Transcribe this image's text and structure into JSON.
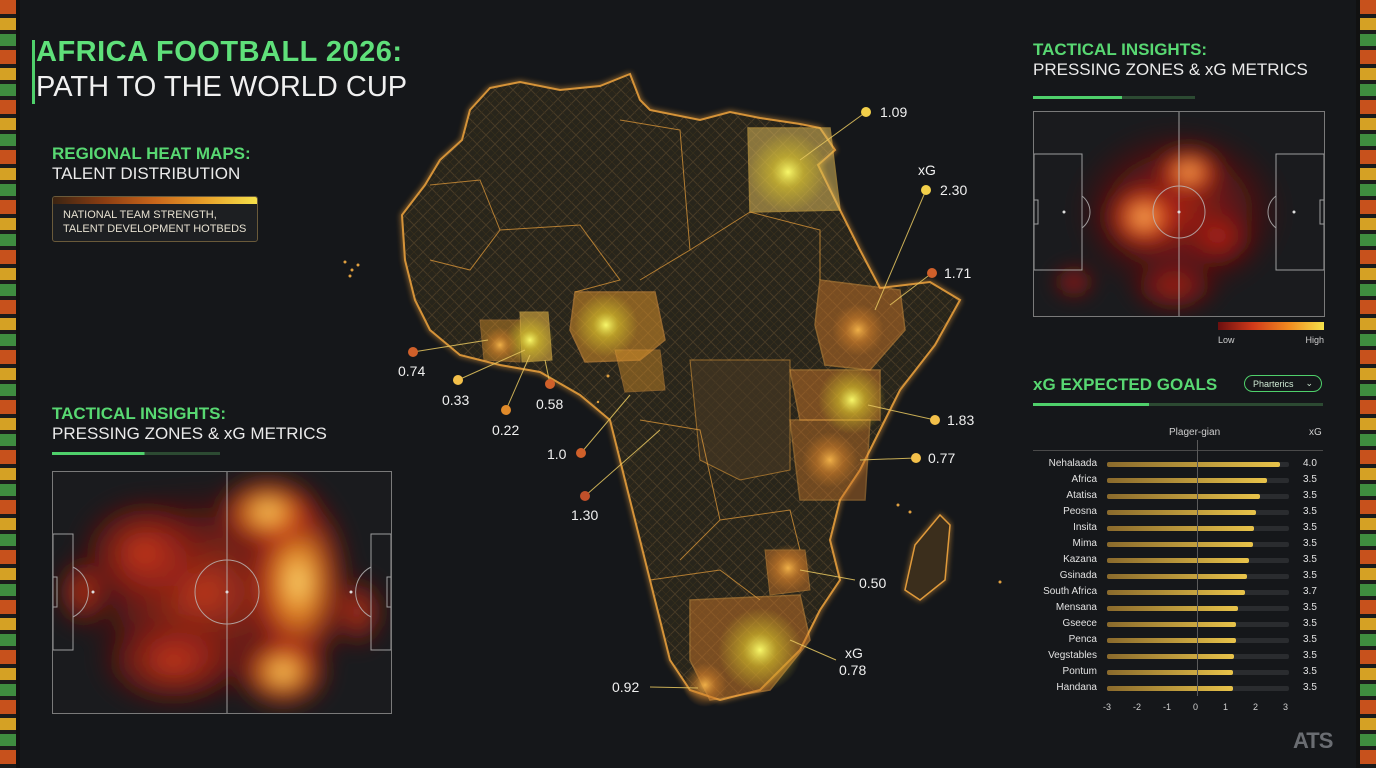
{
  "header": {
    "title_line1": "AFRICA FOOTBALL 2026:",
    "title_line2": "PATH TO THE WORLD CUP"
  },
  "regional": {
    "title": "REGIONAL HEAT MAPS:",
    "subtitle": "TALENT DISTRIBUTION",
    "legend_line1": "NATIONAL TEAM STRENGTH,",
    "legend_line2": "TALENT DEVELOPMENT HOTBEDS"
  },
  "tactical_left": {
    "title": "TACTICAL INSIGHTS:",
    "subtitle": "PRESSING ZONES & xG METRICS"
  },
  "tactical_right": {
    "title": "TACTICAL INSIGHTS:",
    "subtitle": "PRESSING ZONES & xG METRICS",
    "legend_low": "Low",
    "legend_high": "High"
  },
  "map_labels": [
    {
      "text": "1.09",
      "color": "#f3d04a"
    },
    {
      "text": "xG",
      "color": "#f3d04a"
    },
    {
      "text": "2.30",
      "color": "#f3d04a"
    },
    {
      "text": "1.71",
      "color": "#d0602a"
    },
    {
      "text": "1.83",
      "color": "#f3c04a"
    },
    {
      "text": "0.77",
      "color": "#f3c04a"
    },
    {
      "text": "0.74",
      "color": "#d0602a"
    },
    {
      "text": "0.33",
      "color": "#f3c04a"
    },
    {
      "text": "0.58",
      "color": "#d0602a"
    },
    {
      "text": "0.22",
      "color": "#e08a2a"
    },
    {
      "text": "1.0",
      "color": "#d0602a"
    },
    {
      "text": "1.30",
      "color": "#c0502a"
    },
    {
      "text": "0.50",
      "color": "#e08a2a"
    },
    {
      "text": "xG",
      "color": "#f3c04a"
    },
    {
      "text": "0.78",
      "color": "#f3c04a"
    },
    {
      "text": "0.92",
      "color": "#f3c04a"
    }
  ],
  "xg_panel": {
    "title": "xG EXPECTED GOALS",
    "dropdown": "Pharterics",
    "col_player": "Plager-gian",
    "col_xg": "xG",
    "axis_ticks": [
      "-3",
      "-2",
      "-1",
      "0",
      "1",
      "2",
      "3"
    ],
    "rows": [
      {
        "name": "Nehalaada",
        "xg": "4.0",
        "value": 0.95
      },
      {
        "name": "Africa",
        "xg": "3.5",
        "value": 0.88
      },
      {
        "name": "Atatisa",
        "xg": "3.5",
        "value": 0.84
      },
      {
        "name": "Peosna",
        "xg": "3.5",
        "value": 0.82
      },
      {
        "name": "Insita",
        "xg": "3.5",
        "value": 0.81
      },
      {
        "name": "Mima",
        "xg": "3.5",
        "value": 0.8
      },
      {
        "name": "Kazana",
        "xg": "3.5",
        "value": 0.78
      },
      {
        "name": "Gsinada",
        "xg": "3.5",
        "value": 0.77
      },
      {
        "name": "South Africa",
        "xg": "3.7",
        "value": 0.76
      },
      {
        "name": "Mensana",
        "xg": "3.5",
        "value": 0.72
      },
      {
        "name": "Gseece",
        "xg": "3.5",
        "value": 0.71
      },
      {
        "name": "Penca",
        "xg": "3.5",
        "value": 0.71
      },
      {
        "name": "Vegstables",
        "xg": "3.5",
        "value": 0.7
      },
      {
        "name": "Pontum",
        "xg": "3.5",
        "value": 0.69
      },
      {
        "name": "Handana",
        "xg": "3.5",
        "value": 0.69
      }
    ]
  },
  "watermark": "ATS"
}
